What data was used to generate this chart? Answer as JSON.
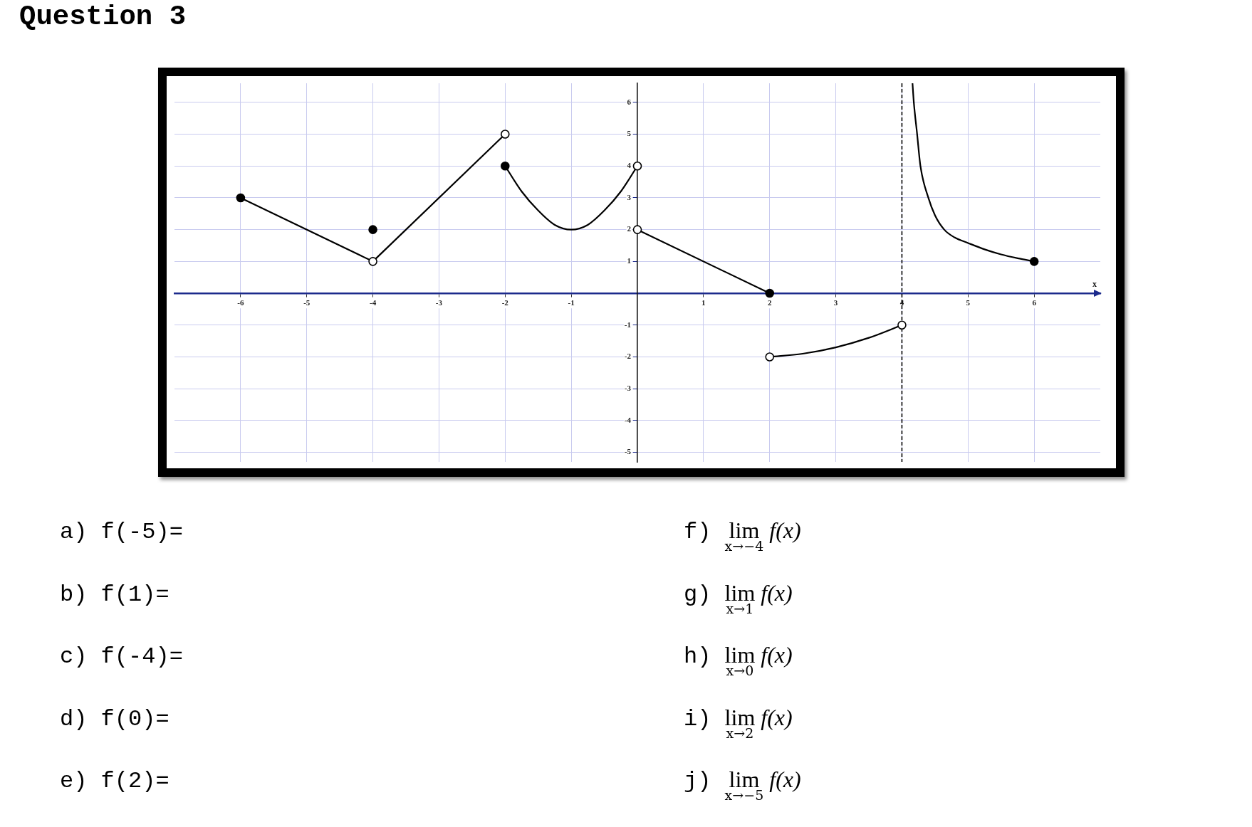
{
  "chart_data": {
    "type": "line",
    "title": "Question 3",
    "xlabel": "x",
    "xlim": [
      -7,
      7
    ],
    "xticks": [
      -6,
      -5,
      -4,
      -3,
      -2,
      -1,
      1,
      2,
      3,
      4,
      5,
      6
    ],
    "ylim": [
      -5.3,
      6.6
    ],
    "yticks": [
      -5,
      -4,
      -3,
      -2,
      -1,
      1,
      2,
      3,
      4,
      5,
      6
    ],
    "grid": true,
    "series": [
      {
        "type": "line",
        "color": "#000000",
        "x": [
          -6,
          -4
        ],
        "values": [
          3,
          1
        ]
      },
      {
        "type": "line",
        "color": "#000000",
        "x": [
          -4,
          -2
        ],
        "values": [
          1,
          5
        ]
      },
      {
        "type": "line",
        "color": "#000000",
        "x": [
          -2,
          -1.75,
          -1.5,
          -1.25,
          -1,
          -0.75,
          -0.5,
          -0.25,
          0
        ],
        "values": [
          4,
          3.2,
          2.6,
          2.15,
          2,
          2.15,
          2.6,
          3.2,
          4
        ]
      },
      {
        "type": "line",
        "color": "#000000",
        "x": [
          0,
          2
        ],
        "values": [
          2,
          0
        ]
      },
      {
        "type": "line",
        "color": "#000000",
        "x": [
          2,
          2.5,
          3,
          3.5,
          4
        ],
        "values": [
          -2,
          -1.9,
          -1.7,
          -1.4,
          -1
        ]
      },
      {
        "type": "line",
        "color": "#000000",
        "x": [
          4.16,
          4.18,
          4.23,
          4.28,
          4.4,
          4.5,
          4.64,
          4.8,
          5,
          5.25,
          5.5,
          5.75,
          6
        ],
        "values": [
          6.6,
          6,
          5,
          4,
          3,
          2.45,
          2,
          1.75,
          1.58,
          1.38,
          1.22,
          1.1,
          1
        ]
      },
      {
        "type": "scatter",
        "color": "#000000",
        "marker": "circle",
        "x": [
          -6,
          -4,
          -2,
          2,
          6
        ],
        "values": [
          3,
          2,
          4,
          0,
          1
        ]
      },
      {
        "type": "scatter",
        "color": "#ffffff",
        "marker": "circle",
        "x": [
          -4,
          -2,
          0,
          0,
          2,
          4
        ],
        "values": [
          1,
          5,
          4,
          2,
          -2,
          -1
        ]
      }
    ],
    "ref_lines": [
      {
        "axis": "x",
        "value": 4,
        "color": "#000000",
        "line_style": "dashed"
      }
    ],
    "annotations": [
      "a) f(-5)=",
      "b) f(1)=",
      "c) f(-4)=",
      "d) f(0)=",
      "e) f(2)=",
      "f) lim$_{x→−4}$ f(x)",
      "g) lim$_{x→1}$ f(x)",
      "h) lim$_{x→0}$ f(x)",
      "i) lim$_{x→2}$ f(x)",
      "j) lim$_{x→−5}$ f(x)"
    ]
  }
}
